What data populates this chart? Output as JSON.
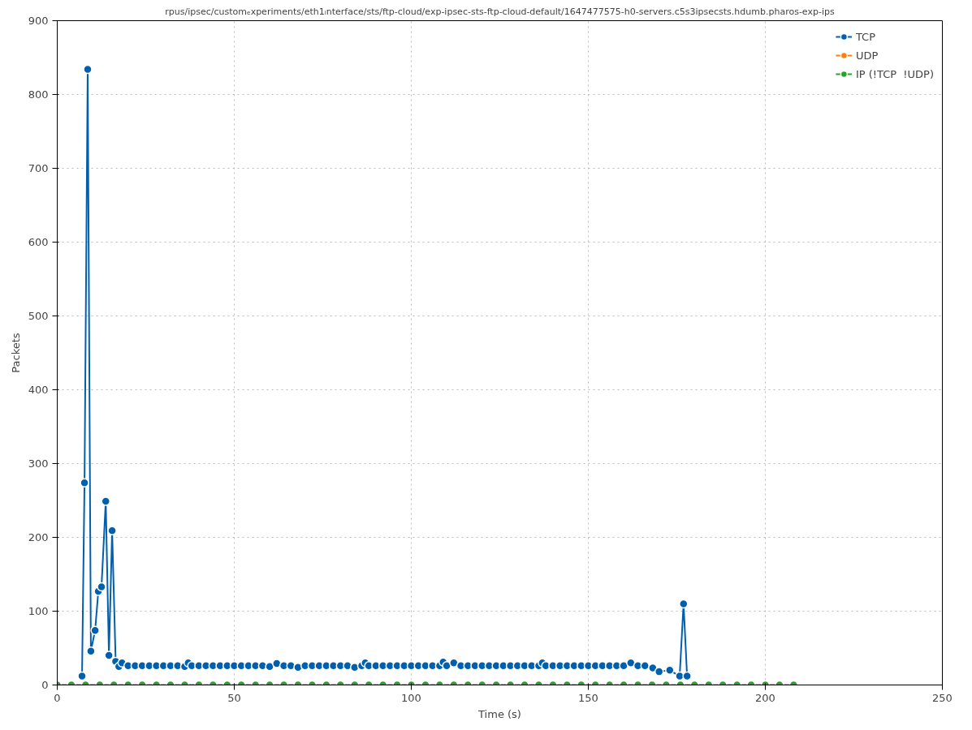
{
  "chart_data": {
    "type": "line",
    "title": "rpus/ipsec/customₑxperiments/eth1ᵢnterface/sts/ftp-cloud/exp-ipsec-sts-ftp-cloud-default/1647477575-h0-servers.c5s3ipsecsts.hdumb.pharos-exp-ips",
    "xlabel": "Time (s)",
    "ylabel": "Packets",
    "xlim": [
      0,
      250
    ],
    "ylim": [
      0,
      900
    ],
    "xticks": [
      0,
      50,
      100,
      150,
      200,
      250
    ],
    "yticks": [
      0,
      100,
      200,
      300,
      400,
      500,
      600,
      700,
      800,
      900
    ],
    "grid": true,
    "legend": "top right",
    "marker": "circle",
    "line_style": "solid",
    "series": [
      {
        "name": "TCP",
        "color": "#0060ad",
        "x": [
          7,
          7.7,
          8.6,
          9.5,
          10.7,
          11.6,
          12.5,
          13.7,
          14.6,
          15.5,
          16.5,
          17.4,
          18.3,
          20,
          22,
          24,
          26,
          28,
          30,
          32,
          34,
          36,
          37,
          38,
          40,
          42,
          44,
          46,
          48,
          50,
          52,
          54,
          56,
          58,
          60,
          62,
          64,
          66,
          68,
          70,
          72,
          74,
          76,
          78,
          80,
          82,
          84,
          86,
          87,
          88,
          90,
          92,
          94,
          96,
          98,
          100,
          102,
          104,
          106,
          108,
          109,
          110,
          112,
          114,
          116,
          118,
          120,
          122,
          124,
          126,
          128,
          130,
          132,
          134,
          136,
          137,
          138,
          140,
          142,
          144,
          146,
          148,
          150,
          152,
          154,
          156,
          158,
          160,
          162,
          164,
          166,
          168.2,
          170,
          173,
          175.8,
          176.9,
          177.9
        ],
        "values": [
          12,
          274,
          834,
          46,
          74,
          127,
          133,
          249,
          40,
          209,
          32,
          25,
          30,
          26,
          26,
          26,
          26,
          26,
          26,
          26,
          26,
          25,
          30,
          26,
          26,
          26,
          26,
          26,
          26,
          26,
          26,
          26,
          26,
          26,
          25,
          29,
          26,
          26,
          24,
          26,
          26,
          26,
          26,
          26,
          26,
          26,
          24,
          26,
          30,
          26,
          26,
          26,
          26,
          26,
          26,
          26,
          26,
          26,
          26,
          26,
          31,
          26,
          30,
          26,
          26,
          26,
          26,
          26,
          26,
          26,
          26,
          26,
          26,
          26,
          26,
          30,
          26,
          26,
          26,
          26,
          26,
          26,
          26,
          26,
          26,
          26,
          26,
          26,
          30,
          26,
          26,
          23,
          18,
          20,
          12,
          110,
          12
        ]
      },
      {
        "name": "UDP",
        "color": "#ff7f0e"
      },
      {
        "name": "IP (!TCP  !UDP)",
        "color": "#2ca02c",
        "x": [
          0,
          4,
          8,
          12,
          16,
          20,
          24,
          28,
          32,
          36,
          40,
          44,
          48,
          52,
          56,
          60,
          64,
          68,
          72,
          76,
          80,
          84,
          88,
          92,
          96,
          100,
          104,
          108,
          112,
          116,
          120,
          124,
          128,
          132,
          136,
          140,
          144,
          148,
          152,
          156,
          160,
          164,
          168,
          172,
          176,
          180,
          184,
          188,
          192,
          196,
          200,
          204,
          208
        ],
        "values": [
          0,
          0,
          0,
          0,
          0,
          0,
          0,
          0,
          0,
          0,
          0,
          0,
          0,
          0,
          0,
          0,
          0,
          0,
          0,
          0,
          0,
          0,
          0,
          0,
          0,
          0,
          0,
          0,
          0,
          0,
          0,
          0,
          0,
          0,
          0,
          0,
          0,
          0,
          0,
          0,
          0,
          0,
          0,
          0,
          0,
          0,
          0,
          0,
          0,
          0,
          0,
          0,
          0
        ]
      }
    ]
  }
}
